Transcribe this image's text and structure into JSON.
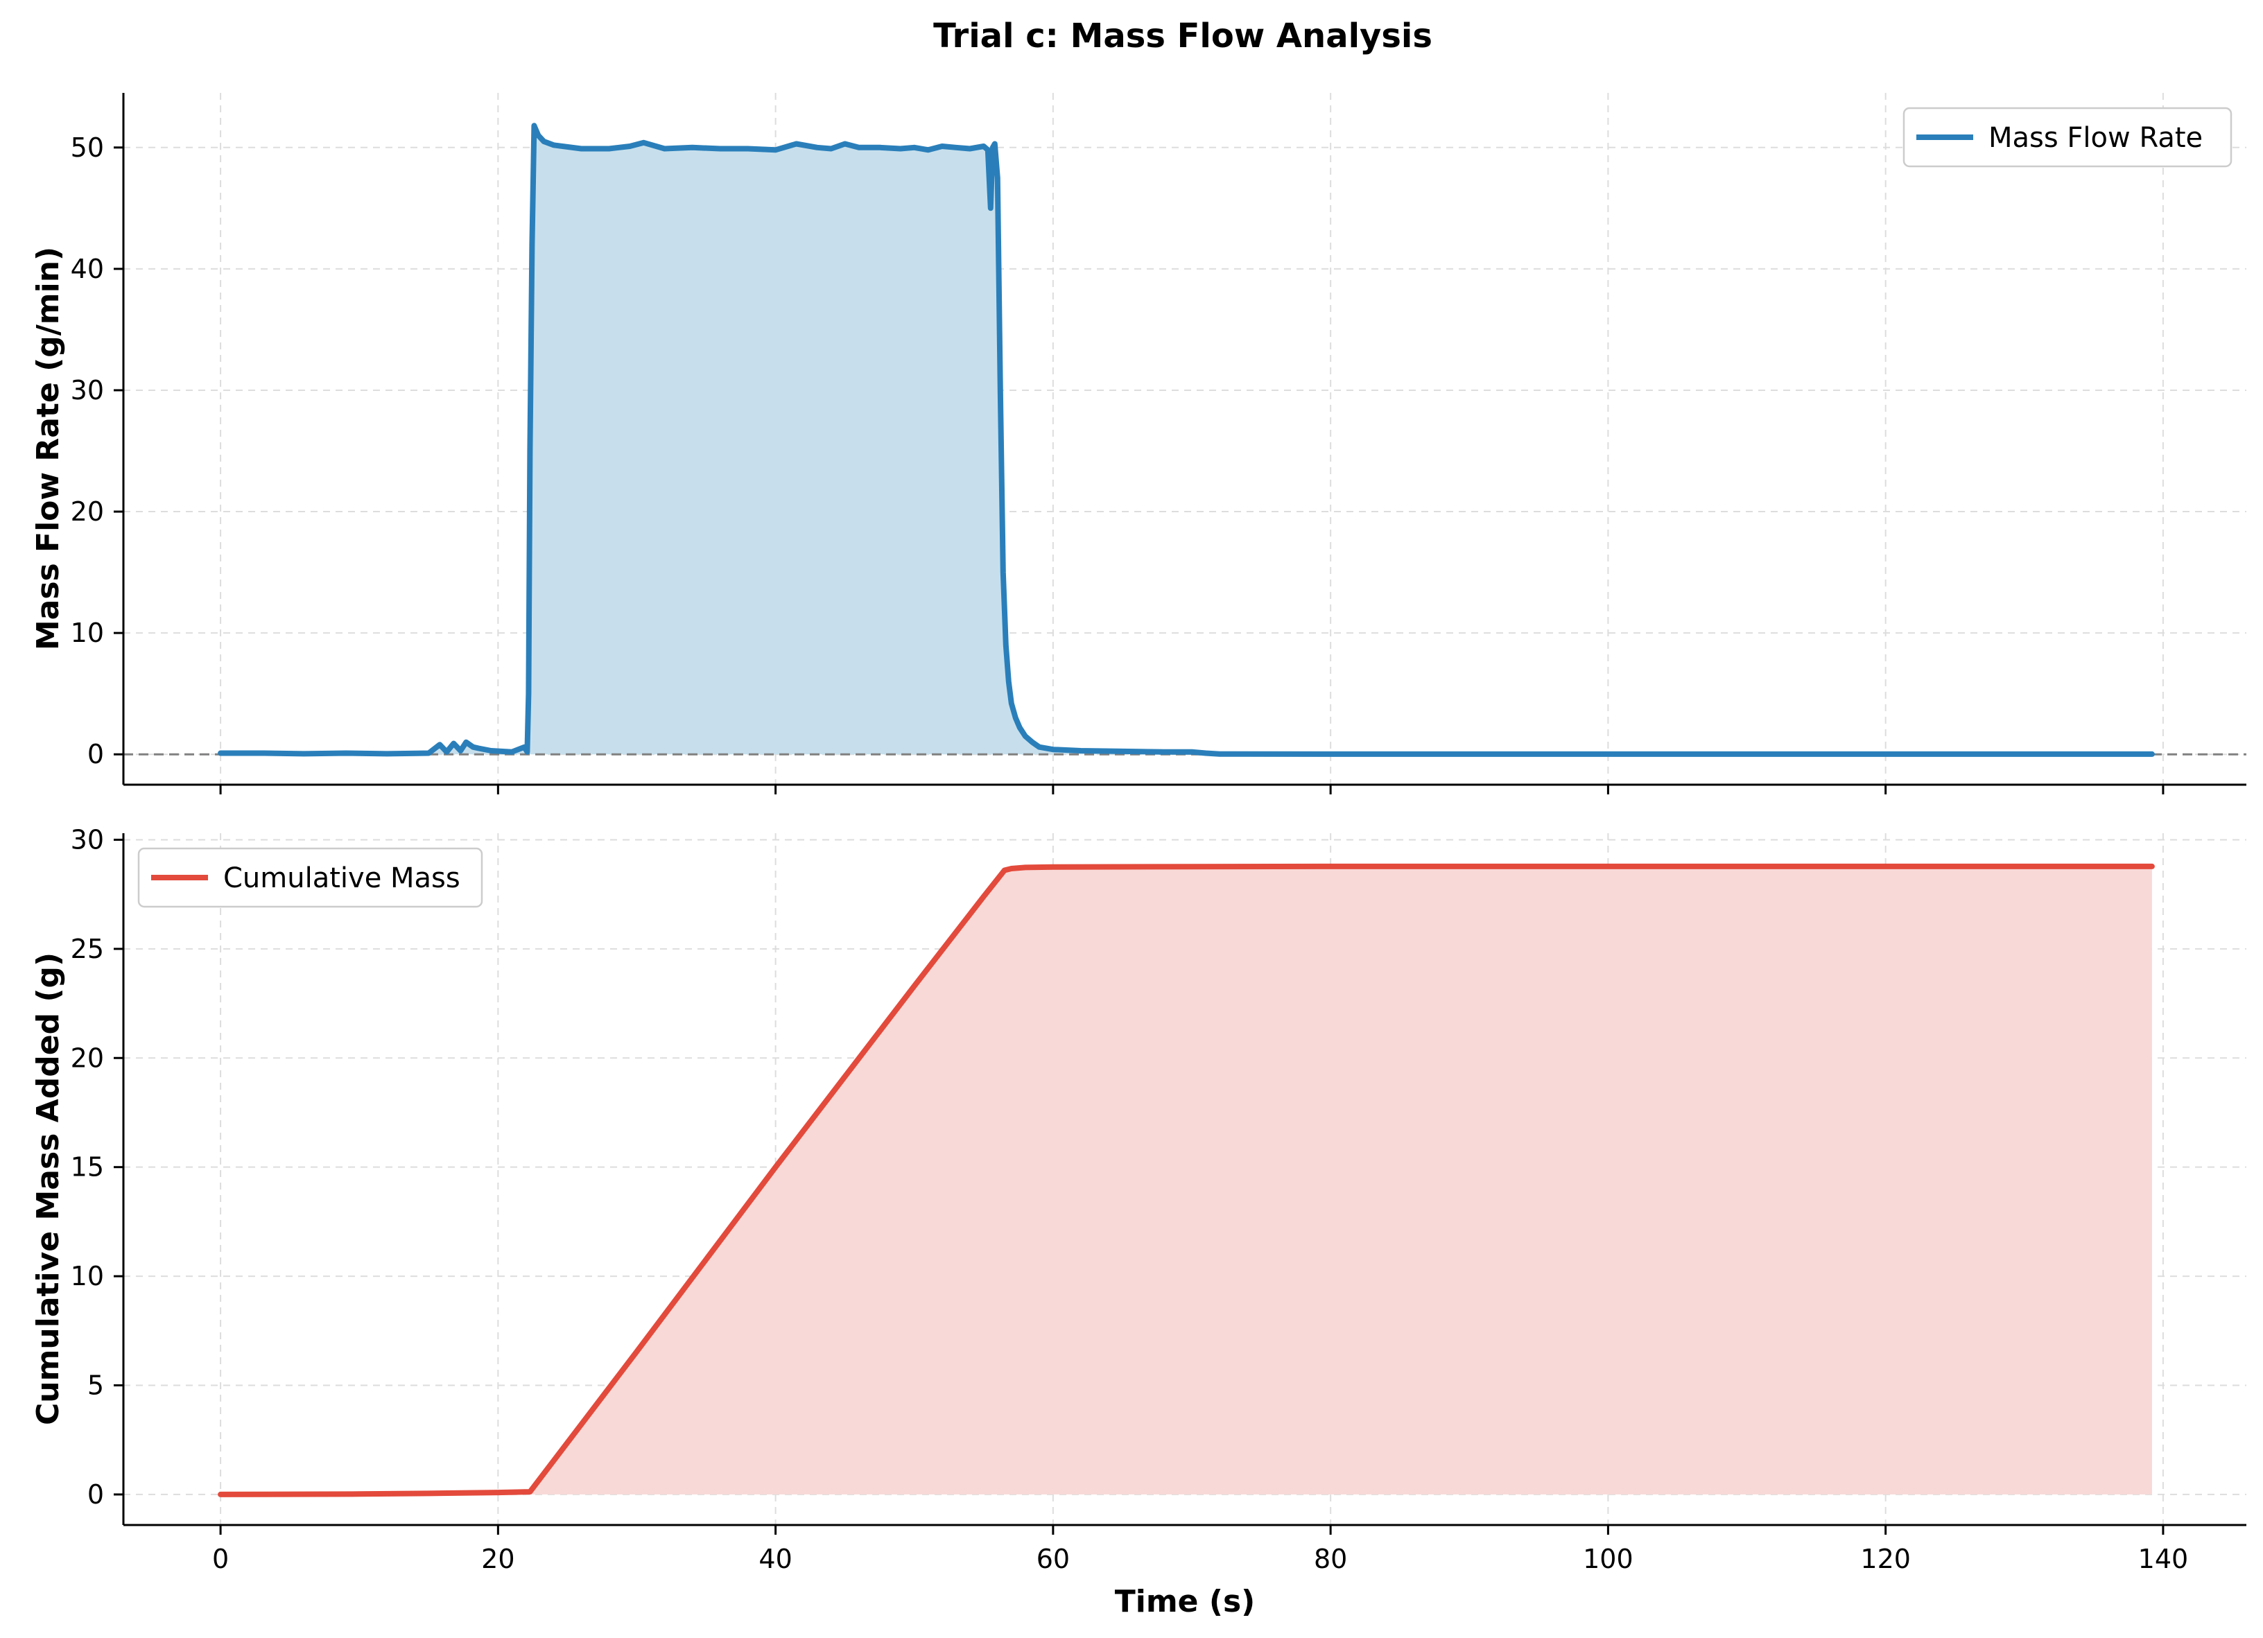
{
  "figure": {
    "title": "Trial c: Mass Flow Analysis",
    "colors": {
      "flow": "#2a7fba",
      "flow_fill": "#c7dfec",
      "mass": "#e34a3b",
      "mass_fill": "#f8d9d7",
      "grid": "#dddddd",
      "zero_line": "#808080"
    }
  },
  "chart_data": [
    {
      "type": "area",
      "ylabel": "Mass Flow Rate (g/min)",
      "xlabel": "",
      "xlim": [
        -7,
        146
      ],
      "ylim": [
        -2.5,
        54.5
      ],
      "xticks": [
        0,
        20,
        40,
        60,
        80,
        100,
        120,
        140
      ],
      "yticks": [
        0,
        10,
        20,
        30,
        40,
        50
      ],
      "show_xtick_labels": false,
      "grid": true,
      "zero_reference_line": true,
      "legend_position": "upper right",
      "series": [
        {
          "name": "Mass Flow Rate",
          "color": "#2a7fba",
          "fill": true,
          "x": [
            0,
            3,
            6,
            9,
            12,
            15,
            15.8,
            16.3,
            16.8,
            17.3,
            17.7,
            18.2,
            18.6,
            19.5,
            21,
            21.9,
            22.1,
            22.2,
            22.3,
            22.45,
            22.6,
            22.9,
            23.3,
            24,
            26,
            28,
            29.5,
            30.5,
            32,
            34,
            36,
            38,
            40,
            41.5,
            43,
            44,
            45,
            46,
            47.5,
            49,
            50,
            51,
            52,
            53,
            54,
            55,
            55.3,
            55.5,
            55.65,
            55.8,
            56,
            56.2,
            56.4,
            56.6,
            56.8,
            57,
            57.3,
            57.6,
            58,
            58.5,
            59,
            60,
            62,
            65,
            68,
            70,
            71,
            72,
            80,
            100,
            120,
            139.2
          ],
          "y": [
            0.1,
            0.1,
            0.05,
            0.1,
            0.05,
            0.1,
            0.8,
            0.2,
            0.9,
            0.3,
            1.0,
            0.6,
            0.5,
            0.3,
            0.2,
            0.6,
            0.2,
            5,
            25,
            42,
            51.8,
            51.0,
            50.5,
            50.2,
            49.9,
            49.9,
            50.1,
            50.4,
            49.9,
            50.0,
            49.9,
            49.9,
            49.8,
            50.3,
            50.0,
            49.9,
            50.3,
            50.0,
            50.0,
            49.9,
            50.0,
            49.8,
            50.1,
            50.0,
            49.9,
            50.1,
            49.8,
            45.0,
            50.0,
            50.3,
            47.5,
            30,
            15,
            9,
            6,
            4.2,
            3,
            2.2,
            1.5,
            1.0,
            0.6,
            0.4,
            0.3,
            0.25,
            0.2,
            0.2,
            0.1,
            0.03,
            0.02,
            0.02,
            0.02,
            0.02
          ]
        }
      ]
    },
    {
      "type": "area",
      "ylabel": "Cumulative Mass Added (g)",
      "xlabel": "Time (s)",
      "xlim": [
        -7,
        146
      ],
      "ylim": [
        -1.4,
        30.3
      ],
      "xticks": [
        0,
        20,
        40,
        60,
        80,
        100,
        120,
        140
      ],
      "yticks": [
        0,
        5,
        10,
        15,
        20,
        25,
        30
      ],
      "show_xtick_labels": true,
      "grid": true,
      "legend_position": "upper left",
      "series": [
        {
          "name": "Cumulative Mass",
          "color": "#e34a3b",
          "fill": true,
          "x": [
            0,
            10,
            15,
            20,
            22.3,
            30,
            40,
            50,
            55,
            56,
            56.5,
            57,
            58,
            60,
            70,
            80,
            100,
            120,
            139.2
          ],
          "y": [
            0,
            0.02,
            0.05,
            0.09,
            0.12,
            6.55,
            15.0,
            23.3,
            27.4,
            28.2,
            28.6,
            28.68,
            28.73,
            28.75,
            28.77,
            28.78,
            28.78,
            28.78,
            28.78
          ]
        }
      ]
    }
  ]
}
